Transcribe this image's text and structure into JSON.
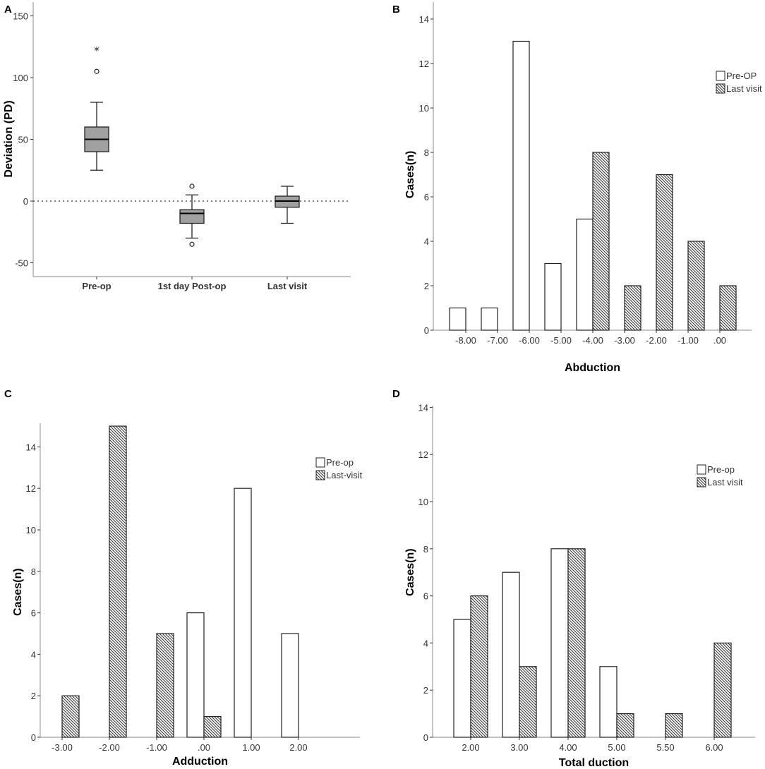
{
  "panel_labels": [
    "A",
    "B",
    "C",
    "D"
  ],
  "colors": {
    "box_fill": "#a0a0a0",
    "bar_pre": "#ffffff",
    "bar_last_hatch": "#333333",
    "axis": "#888888"
  },
  "chart_data": [
    {
      "type": "box",
      "panel": "A",
      "ylabel": "Deviation (PD)",
      "xlabel": "",
      "categories": [
        "Pre-op",
        "1st day Post-op",
        "Last visit"
      ],
      "yticks": [
        "150",
        "100",
        "50",
        "0",
        "-50"
      ],
      "ytick_values": [
        150,
        100,
        50,
        0,
        -50
      ],
      "ylim": [
        -60,
        160
      ],
      "reference_line": 0,
      "boxes": [
        {
          "min": 25,
          "q1": 40,
          "median": 50,
          "q3": 60,
          "max": 80,
          "outliers": [
            105
          ],
          "extremes": [
            123
          ]
        },
        {
          "min": -30,
          "q1": -18,
          "median": -10,
          "q3": -7,
          "max": 5,
          "outliers": [
            12,
            -35
          ],
          "extremes": []
        },
        {
          "min": -18,
          "q1": -5,
          "median": 0,
          "q3": 4,
          "max": 12,
          "outliers": [],
          "extremes": []
        }
      ],
      "grid": false
    },
    {
      "type": "bar",
      "panel": "B",
      "xlabel": "Abduction",
      "ylabel": "Cases(n)",
      "categories": [
        "-8.00",
        "-7.00",
        "-6.00",
        "-5.00",
        "-4.00",
        "-3.00",
        "-2.00",
        "-1.00",
        ".00"
      ],
      "yticks": [
        "0",
        "2",
        "4",
        "6",
        "8",
        "10",
        "12",
        "14"
      ],
      "ylim": [
        0,
        14.6
      ],
      "legend_position": "right",
      "series": [
        {
          "name": "Pre-OP",
          "values": [
            1,
            1,
            13,
            3,
            5,
            0,
            0,
            0,
            0
          ]
        },
        {
          "name": "Last visit",
          "values": [
            0,
            0,
            0,
            0,
            8,
            2,
            7,
            4,
            2
          ]
        }
      ],
      "grid": false
    },
    {
      "type": "bar",
      "panel": "C",
      "xlabel": "Adduction",
      "ylabel": "Cases(n)",
      "categories": [
        "-3.00",
        "-2.00",
        "-1.00",
        ".00",
        "1.00",
        "2.00"
      ],
      "yticks": [
        "0",
        "2",
        "4",
        "6",
        "8",
        "10",
        "12",
        "14"
      ],
      "ylim": [
        0,
        16
      ],
      "legend_position": "right",
      "series": [
        {
          "name": "Pre-op",
          "values": [
            0,
            0,
            0,
            6,
            12,
            5
          ]
        },
        {
          "name": "Last-visit",
          "values": [
            2,
            15,
            5,
            1,
            0,
            0
          ]
        }
      ],
      "grid": false
    },
    {
      "type": "bar",
      "panel": "D",
      "xlabel": "Total duction",
      "ylabel": "Cases(n)",
      "categories": [
        "2.00",
        "3.00",
        "4.00",
        "5.00",
        "5.50",
        "6.00"
      ],
      "yticks": [
        "0",
        "2",
        "4",
        "6",
        "8",
        "10",
        "12",
        "14"
      ],
      "ylim": [
        0,
        14.6
      ],
      "legend_position": "right",
      "series": [
        {
          "name": "Pre-op",
          "values": [
            5,
            7,
            8,
            3,
            0,
            0
          ]
        },
        {
          "name": "Last visit",
          "values": [
            6,
            3,
            8,
            1,
            1,
            4
          ]
        }
      ],
      "grid": false
    }
  ]
}
